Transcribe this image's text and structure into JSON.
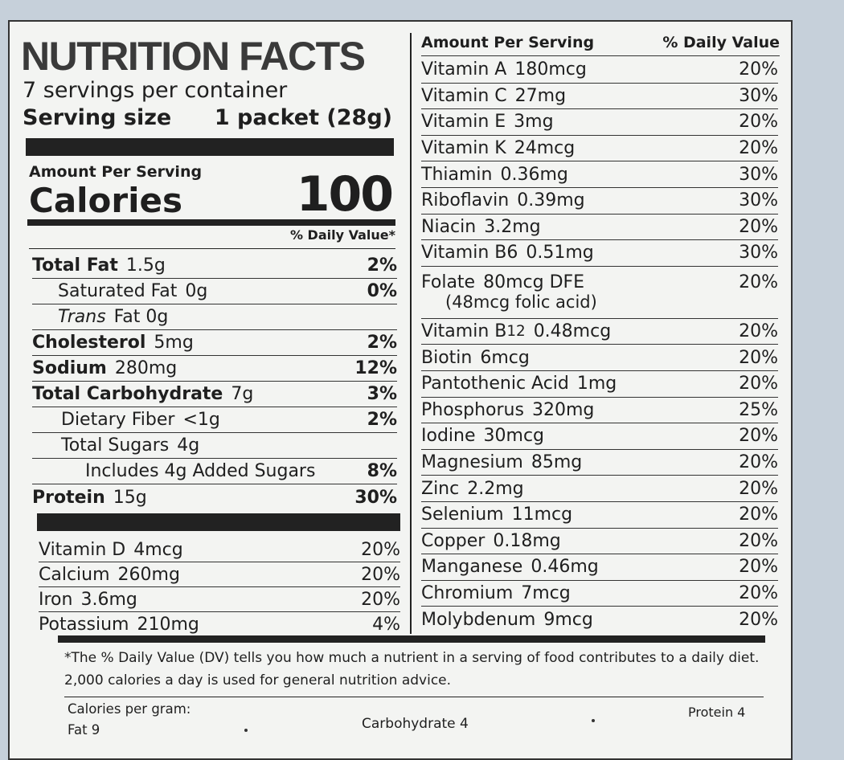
{
  "title": "NUTRITION FACTS",
  "servings": "7 servings per container",
  "serving_size": {
    "label": "Serving size",
    "value": "1 packet (28g)"
  },
  "amount_per_serving": "Amount Per Serving",
  "calories": {
    "label": "Calories",
    "value": "100"
  },
  "dv_header": "% Daily Value*",
  "left_rows": [
    {
      "name": "Total Fat",
      "amount": "1.5g",
      "dv": "2%"
    },
    {
      "name": "Saturated Fat",
      "amount": "0g",
      "dv": "0%"
    },
    {
      "name": "Trans",
      "amount": "Fat 0g"
    },
    {
      "name": "Cholesterol",
      "amount": "5mg",
      "dv": "2%"
    },
    {
      "name": "Sodium",
      "amount": "280mg",
      "dv": "12%"
    },
    {
      "name": "Total Carbohydrate",
      "amount": "7g",
      "dv": "3%"
    },
    {
      "name": "Dietary Fiber",
      "amount": "<1g",
      "dv": "2%"
    },
    {
      "name": "Total Sugars",
      "amount": "4g"
    },
    {
      "name": "Includes 4g Added Sugars",
      "dv": "8%"
    },
    {
      "name": "Protein",
      "amount": "15g",
      "dv": "30%"
    }
  ],
  "left_vitamins": [
    {
      "name": "Vitamin D",
      "amount": "4mcg",
      "dv": "20%"
    },
    {
      "name": "Calcium",
      "amount": "260mg",
      "dv": "20%"
    },
    {
      "name": "Iron",
      "amount": "3.6mg",
      "dv": "20%"
    },
    {
      "name": "Potassium",
      "amount": "210mg",
      "dv": "4%"
    }
  ],
  "right_header": {
    "amount": "Amount Per Serving",
    "dv": "% Daily Value"
  },
  "right_rows": [
    {
      "name": "Vitamin A",
      "amount": "180mcg",
      "dv": "20%"
    },
    {
      "name": "Vitamin C",
      "amount": "27mg",
      "dv": "30%"
    },
    {
      "name": "Vitamin E",
      "amount": "3mg",
      "dv": "20%"
    },
    {
      "name": "Vitamin K",
      "amount": "24mcg",
      "dv": "20%"
    },
    {
      "name": "Thiamin",
      "amount": "0.36mg",
      "dv": "30%"
    },
    {
      "name": "Riboflavin",
      "amount": "0.39mg",
      "dv": "30%"
    },
    {
      "name": "Niacin",
      "amount": "3.2mg",
      "dv": "20%"
    },
    {
      "name": "Vitamin B6",
      "amount": "0.51mg",
      "dv": "30%"
    },
    {
      "name": "Folate",
      "amount": "80mcg DFE",
      "dv": "20%",
      "note": "(48mcg folic acid)"
    },
    {
      "name": "Vitamin B",
      "subscript": "12",
      "amount": "0.48mcg",
      "dv": "20%"
    },
    {
      "name": "Biotin",
      "amount": "6mcg",
      "dv": "20%"
    },
    {
      "name": "Pantothenic Acid",
      "amount": "1mg",
      "dv": "20%"
    },
    {
      "name": "Phosphorus",
      "amount": "320mg",
      "dv": "25%"
    },
    {
      "name": "Iodine",
      "amount": "30mcg",
      "dv": "20%"
    },
    {
      "name": "Magnesium",
      "amount": "85mg",
      "dv": "20%"
    },
    {
      "name": "Zinc",
      "amount": "2.2mg",
      "dv": "20%"
    },
    {
      "name": "Selenium",
      "amount": "11mcg",
      "dv": "20%"
    },
    {
      "name": "Copper",
      "amount": "0.18mg",
      "dv": "20%"
    },
    {
      "name": "Manganese",
      "amount": "0.46mg",
      "dv": "20%"
    },
    {
      "name": "Chromium",
      "amount": "7mcg",
      "dv": "20%"
    },
    {
      "name": "Molybdenum",
      "amount": "9mcg",
      "dv": "20%"
    }
  ],
  "footnote": "*The % Daily Value (DV) tells you how much a nutrient in a serving of food contributes to a daily diet. 2,000 calories a day is used for general nutrition advice.",
  "calories_per_gram": {
    "label": "Calories per gram:",
    "fat": "Fat 9",
    "carbohydrate": "Carbohydrate 4",
    "protein": "Protein 4"
  }
}
